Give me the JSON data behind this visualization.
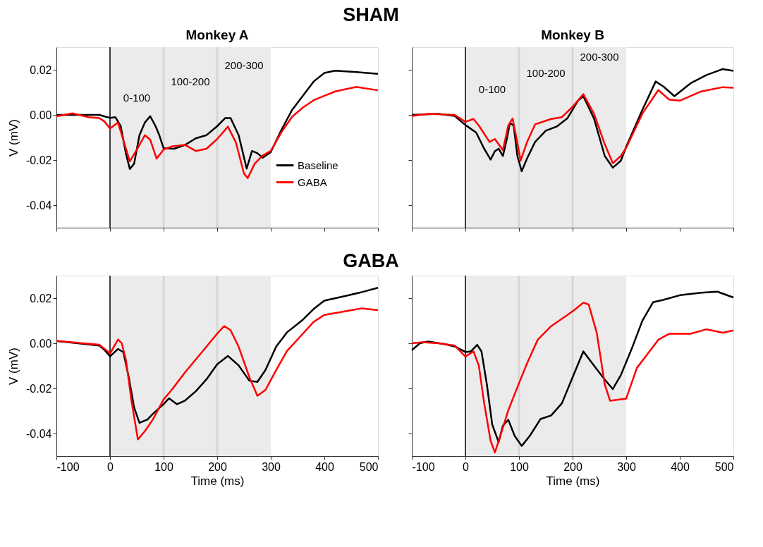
{
  "chart_data": [
    {
      "type": "line",
      "title": "SHAM",
      "subtitle": "Monkey A",
      "ylabel": "V (mV)",
      "annotations": [
        "0-100",
        "100-200",
        "200-300"
      ],
      "xlim": [
        -100,
        500
      ],
      "xticks": [
        {
          "value": -100,
          "label": null
        },
        {
          "value": 0,
          "label": null
        },
        {
          "value": 100,
          "label": null
        },
        {
          "value": 200,
          "label": null
        },
        {
          "value": 300,
          "label": null
        },
        {
          "value": 400,
          "label": null
        },
        {
          "value": 500,
          "label": null
        }
      ],
      "ylim": [
        -0.05,
        0.03
      ],
      "yticks": [
        -0.04,
        -0.02,
        {
          "value": 0,
          "label": "0.00"
        },
        0.02
      ],
      "tick_labels": "y",
      "legend": "right",
      "grid": false,
      "line_style": "solid",
      "bands": [
        {
          "axis": "x",
          "from": 0,
          "to": 300,
          "color": "#ebebeb"
        }
      ],
      "ref_lines": [
        {
          "axis": "x",
          "value": 0,
          "color": "#000000"
        },
        {
          "axis": "x",
          "value": 100,
          "color": "#d6d6d6"
        },
        {
          "axis": "x",
          "value": 200,
          "color": "#d6d6d6"
        }
      ],
      "series": [
        {
          "name": "Baseline",
          "color": "#000000",
          "x": [
            -100,
            -60,
            -20,
            -5,
            0,
            10,
            20,
            30,
            37,
            45,
            55,
            65,
            75,
            85,
            92,
            100,
            120,
            140,
            160,
            180,
            200,
            215,
            225,
            240,
            255,
            265,
            275,
            285,
            300,
            320,
            340,
            360,
            380,
            400,
            420,
            460,
            500
          ],
          "values": [
            0.0,
            0.0,
            0.0,
            -0.001,
            -0.0013,
            -0.001,
            -0.005,
            -0.0175,
            -0.024,
            -0.0216,
            -0.009,
            -0.0034,
            -0.0006,
            -0.005,
            -0.009,
            -0.0148,
            -0.015,
            -0.0133,
            -0.0104,
            -0.009,
            -0.005,
            -0.0014,
            -0.0014,
            -0.009,
            -0.0238,
            -0.016,
            -0.017,
            -0.019,
            -0.0165,
            -0.0066,
            0.0023,
            0.0085,
            0.0148,
            0.0186,
            0.0196,
            0.019,
            0.0182
          ]
        },
        {
          "name": "GABA",
          "color": "#ff0000",
          "x": [
            -100,
            -70,
            -40,
            -20,
            -10,
            0,
            15,
            25,
            37,
            50,
            65,
            75,
            87,
            100,
            115,
            140,
            160,
            180,
            200,
            220,
            235,
            250,
            257,
            270,
            285,
            300,
            320,
            340,
            360,
            380,
            400,
            420,
            460,
            500
          ],
          "values": [
            -0.0006,
            0.0007,
            -0.001,
            -0.0014,
            -0.003,
            -0.006,
            -0.0034,
            -0.0113,
            -0.0206,
            -0.0154,
            -0.009,
            -0.011,
            -0.0194,
            -0.0154,
            -0.014,
            -0.0133,
            -0.016,
            -0.015,
            -0.0107,
            -0.0052,
            -0.0123,
            -0.026,
            -0.028,
            -0.0216,
            -0.018,
            -0.016,
            -0.0076,
            -0.0008,
            0.0033,
            0.0065,
            0.0085,
            0.0104,
            0.0124,
            0.0109
          ]
        }
      ]
    },
    {
      "type": "line",
      "subtitle": "Monkey B",
      "annotations": [
        "0-100",
        "100-200",
        "200-300"
      ],
      "xlim": [
        -100,
        500
      ],
      "xticks": [
        {
          "value": -100,
          "label": null
        },
        {
          "value": 0,
          "label": null
        },
        {
          "value": 100,
          "label": null
        },
        {
          "value": 200,
          "label": null
        },
        {
          "value": 300,
          "label": null
        },
        {
          "value": 400,
          "label": null
        },
        {
          "value": 500,
          "label": null
        }
      ],
      "ylim": [
        -0.05,
        0.03
      ],
      "yticks": [
        {
          "value": -0.04,
          "label": null
        },
        {
          "value": -0.02,
          "label": null
        },
        {
          "value": 0,
          "label": null
        },
        {
          "value": 0.02,
          "label": null
        }
      ],
      "tick_labels": false,
      "grid": false,
      "line_style": "solid",
      "bands": [
        {
          "axis": "x",
          "from": 0,
          "to": 300,
          "color": "#ebebeb"
        }
      ],
      "ref_lines": [
        {
          "axis": "x",
          "value": 0,
          "color": "#000000"
        },
        {
          "axis": "x",
          "value": 100,
          "color": "#d6d6d6"
        },
        {
          "axis": "x",
          "value": 200,
          "color": "#d6d6d6"
        }
      ],
      "series": [
        {
          "color": "#000000",
          "x": [
            -100,
            -50,
            -20,
            0,
            20,
            35,
            47,
            55,
            62,
            70,
            78,
            83,
            90,
            97,
            105,
            115,
            130,
            150,
            170,
            190,
            210,
            220,
            240,
            260,
            275,
            290,
            300,
            330,
            355,
            370,
            390,
            420,
            450,
            480,
            500
          ],
          "values": [
            0.0,
            0.0005,
            -0.0005,
            -0.0045,
            -0.0078,
            -0.015,
            -0.0198,
            -0.0161,
            -0.015,
            -0.0182,
            -0.0099,
            -0.0036,
            -0.0047,
            -0.0182,
            -0.025,
            -0.0193,
            -0.012,
            -0.007,
            -0.0052,
            -0.0016,
            0.0063,
            0.0083,
            -0.0016,
            -0.0182,
            -0.0234,
            -0.0203,
            -0.0141,
            0.0021,
            0.0148,
            0.0125,
            0.0083,
            0.014,
            0.0177,
            0.0203,
            0.0195
          ]
        },
        {
          "color": "#ff0000",
          "x": [
            -100,
            -70,
            -20,
            0,
            15,
            25,
            45,
            55,
            70,
            80,
            88,
            95,
            103,
            115,
            130,
            160,
            180,
            200,
            220,
            240,
            260,
            275,
            290,
            300,
            330,
            360,
            380,
            400,
            440,
            480,
            500
          ],
          "values": [
            -0.0005,
            0.0005,
            0.0,
            -0.0031,
            -0.0018,
            -0.0047,
            -0.012,
            -0.0107,
            -0.0156,
            -0.0047,
            -0.0016,
            -0.0099,
            -0.0203,
            -0.012,
            -0.0042,
            -0.0018,
            -0.001,
            0.0036,
            0.0092,
            0.0005,
            -0.013,
            -0.0214,
            -0.0182,
            -0.0146,
            0.0005,
            0.011,
            0.0068,
            0.0063,
            0.0104,
            0.0123,
            0.012
          ]
        }
      ]
    },
    {
      "type": "line",
      "title": "GABA",
      "ylabel": "V (mV)",
      "xlabel": "Time (ms)",
      "xlim": [
        -100,
        500
      ],
      "xticks": [
        -100,
        0,
        100,
        200,
        300,
        400,
        500
      ],
      "ylim": [
        -0.05,
        0.03
      ],
      "yticks": [
        -0.04,
        -0.02,
        {
          "value": 0,
          "label": "0.00"
        },
        0.02
      ],
      "grid": false,
      "line_style": "solid",
      "bands": [
        {
          "axis": "x",
          "from": 0,
          "to": 300,
          "color": "#ebebeb"
        }
      ],
      "ref_lines": [
        {
          "axis": "x",
          "value": 0,
          "color": "#000000"
        },
        {
          "axis": "x",
          "value": 100,
          "color": "#d6d6d6"
        },
        {
          "axis": "x",
          "value": 200,
          "color": "#d6d6d6"
        }
      ],
      "series": [
        {
          "color": "#000000",
          "x": [
            -100,
            -60,
            -20,
            -10,
            0,
            15,
            25,
            35,
            45,
            55,
            70,
            80,
            100,
            110,
            125,
            140,
            160,
            180,
            200,
            220,
            240,
            260,
            275,
            290,
            310,
            330,
            360,
            380,
            400,
            440,
            470,
            500
          ],
          "values": [
            0.001,
            0.0,
            -0.001,
            -0.003,
            -0.0058,
            -0.0025,
            -0.004,
            -0.015,
            -0.0285,
            -0.0353,
            -0.0338,
            -0.0313,
            -0.027,
            -0.0244,
            -0.027,
            -0.0254,
            -0.0213,
            -0.016,
            -0.0093,
            -0.0056,
            -0.0098,
            -0.0166,
            -0.0171,
            -0.0119,
            -0.0015,
            0.0048,
            0.0105,
            0.0152,
            0.0189,
            0.021,
            0.0227,
            0.0246
          ]
        },
        {
          "color": "#ff0000",
          "x": [
            -100,
            -50,
            -20,
            -5,
            0,
            15,
            22,
            30,
            40,
            52,
            65,
            80,
            100,
            115,
            140,
            160,
            180,
            200,
            213,
            225,
            240,
            260,
            275,
            290,
            310,
            330,
            360,
            380,
            400,
            440,
            470,
            500
          ],
          "values": [
            0.0011,
            0.0,
            -0.0006,
            -0.0035,
            -0.0046,
            0.0017,
            0.0,
            -0.0077,
            -0.0254,
            -0.0426,
            -0.039,
            -0.0338,
            -0.0249,
            -0.0207,
            -0.0129,
            -0.0072,
            -0.0015,
            0.0043,
            0.0076,
            0.0058,
            -0.0015,
            -0.015,
            -0.0233,
            -0.0207,
            -0.0119,
            -0.0035,
            0.0043,
            0.0095,
            0.0126,
            0.0142,
            0.0155,
            0.0147
          ]
        }
      ]
    },
    {
      "type": "line",
      "xlabel": "Time (ms)",
      "xlim": [
        -100,
        500
      ],
      "xticks": [
        -100,
        0,
        100,
        200,
        300,
        400,
        500
      ],
      "ylim": [
        -0.05,
        0.03
      ],
      "yticks": [
        {
          "value": -0.04,
          "label": null
        },
        {
          "value": -0.02,
          "label": null
        },
        {
          "value": 0,
          "label": null
        },
        {
          "value": 0.02,
          "label": null
        }
      ],
      "tick_labels": "x",
      "grid": false,
      "line_style": "solid",
      "bands": [
        {
          "axis": "x",
          "from": 0,
          "to": 300,
          "color": "#ebebeb"
        }
      ],
      "ref_lines": [
        {
          "axis": "x",
          "value": 0,
          "color": "#000000"
        },
        {
          "axis": "x",
          "value": 100,
          "color": "#d6d6d6"
        },
        {
          "axis": "x",
          "value": 200,
          "color": "#d6d6d6"
        }
      ],
      "series": [
        {
          "color": "#000000",
          "x": [
            -100,
            -85,
            -70,
            -40,
            -20,
            0,
            10,
            22,
            30,
            40,
            50,
            62,
            70,
            80,
            92,
            105,
            120,
            140,
            160,
            180,
            200,
            220,
            240,
            260,
            275,
            290,
            310,
            330,
            350,
            370,
            400,
            440,
            470,
            500
          ],
          "values": [
            -0.0031,
            0.0,
            0.0008,
            -0.0003,
            -0.0014,
            -0.0039,
            -0.0036,
            -0.0007,
            -0.0036,
            -0.0182,
            -0.036,
            -0.0438,
            -0.0365,
            -0.0339,
            -0.0411,
            -0.0455,
            -0.0411,
            -0.0336,
            -0.032,
            -0.0266,
            -0.0151,
            -0.0036,
            -0.0099,
            -0.0161,
            -0.0203,
            -0.0141,
            -0.0026,
            0.0099,
            0.0182,
            0.0193,
            0.0213,
            0.0224,
            0.0229,
            0.0203
          ]
        },
        {
          "color": "#ff0000",
          "x": [
            -100,
            -80,
            -50,
            -20,
            0,
            15,
            25,
            35,
            47,
            55,
            65,
            80,
            100,
            115,
            135,
            160,
            190,
            205,
            220,
            230,
            245,
            260,
            270,
            285,
            300,
            320,
            340,
            360,
            380,
            420,
            450,
            480,
            500
          ],
          "values": [
            0.0,
            0.0005,
            0.0,
            -0.001,
            -0.0059,
            -0.0036,
            -0.0099,
            -0.0266,
            -0.0432,
            -0.0484,
            -0.0411,
            -0.0297,
            -0.0177,
            -0.0089,
            0.0016,
            0.0076,
            0.0125,
            0.0151,
            0.018,
            0.0172,
            0.0047,
            -0.0182,
            -0.0255,
            -0.025,
            -0.0245,
            -0.0109,
            -0.0047,
            0.0016,
            0.0042,
            0.0042,
            0.0062,
            0.0047,
            0.0057
          ]
        }
      ]
    }
  ]
}
